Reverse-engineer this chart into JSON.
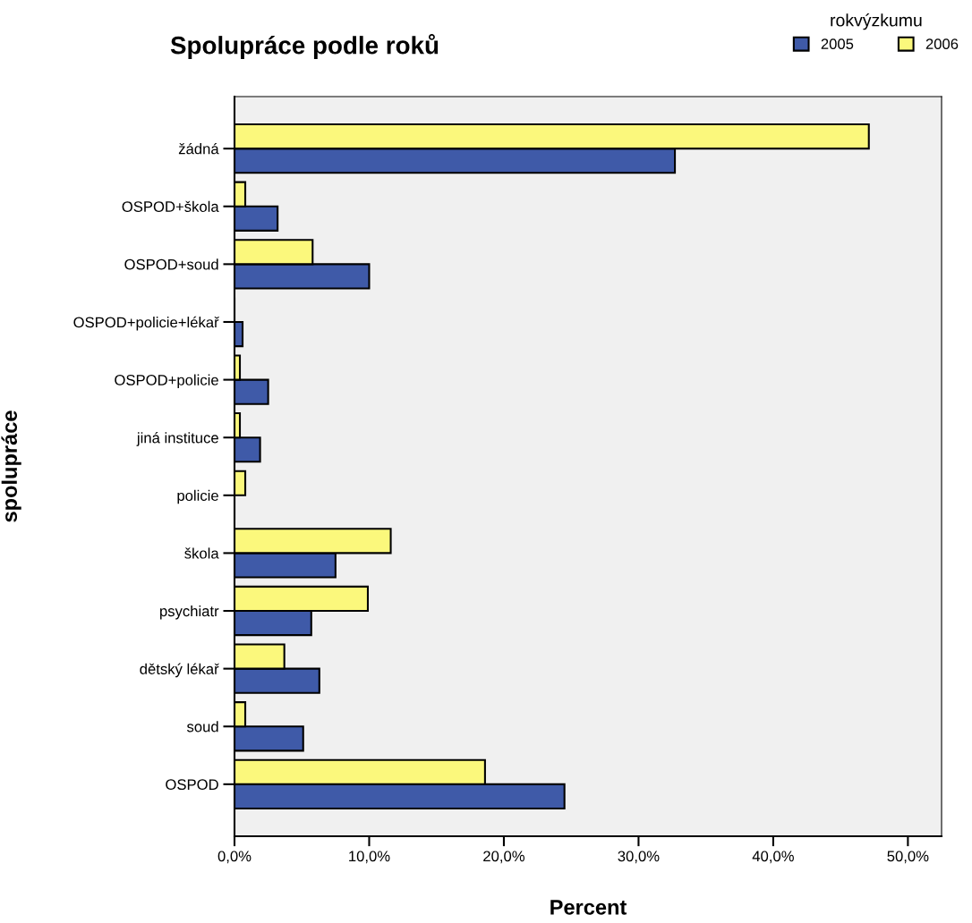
{
  "chart_data": {
    "type": "bar",
    "orientation": "horizontal",
    "title": "Spolupráce podle roků",
    "xlabel": "Percent",
    "ylabel": "spolupráce",
    "legend_title": "rokvýzkumu",
    "legend": "top right",
    "categories": [
      "žádná",
      "OSPOD+škola",
      "OSPOD+soud",
      "OSPOD+policie+lékař",
      "OSPOD+policie",
      "jiná instituce",
      "policie",
      "škola",
      "psychiatr",
      "dětský lékař",
      "soud",
      "OSPOD"
    ],
    "series": [
      {
        "name": "2005",
        "color": "#3f5aa8",
        "values": [
          32.7,
          3.2,
          10.0,
          0.6,
          2.5,
          1.9,
          0,
          7.5,
          5.7,
          6.3,
          5.1,
          24.5
        ]
      },
      {
        "name": "2006",
        "color": "#fbf87c",
        "values": [
          47.1,
          0.8,
          5.8,
          0,
          0.4,
          0.4,
          0.8,
          11.6,
          9.9,
          3.7,
          0.8,
          18.6
        ]
      }
    ],
    "xlim": [
      0,
      52.5
    ],
    "xticks": [
      {
        "value": 0,
        "label": "0,0%"
      },
      {
        "value": 10,
        "label": "10,0%"
      },
      {
        "value": 20,
        "label": "20,0%"
      },
      {
        "value": 30,
        "label": "30,0%"
      },
      {
        "value": 40,
        "label": "40,0%"
      },
      {
        "value": 50,
        "label": "50,0%"
      }
    ],
    "grid": false
  }
}
